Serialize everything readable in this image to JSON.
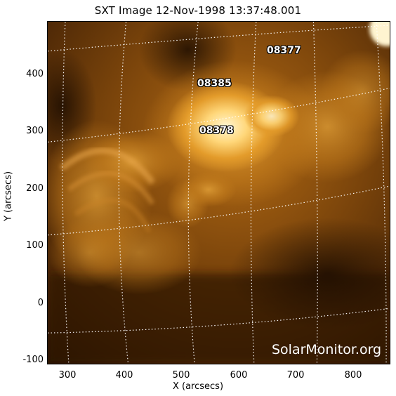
{
  "title": "SXT Image 12-Nov-1998 13:37:48.001",
  "axes": {
    "xlabel": "X (arcsecs)",
    "ylabel": "Y (arcsecs)",
    "xticks": [
      "300",
      "400",
      "500",
      "600",
      "700",
      "800"
    ],
    "yticks": [
      "400",
      "300",
      "200",
      "100",
      "0",
      "-100"
    ]
  },
  "active_regions": [
    "08377",
    "08385",
    "08378"
  ],
  "watermark": "SolarMonitor.org",
  "colors": {
    "background": "#ffffff",
    "sun_dark": "#2a1402",
    "sun_mid": "#9a5a0e",
    "sun_bright": "#fff5cf"
  }
}
